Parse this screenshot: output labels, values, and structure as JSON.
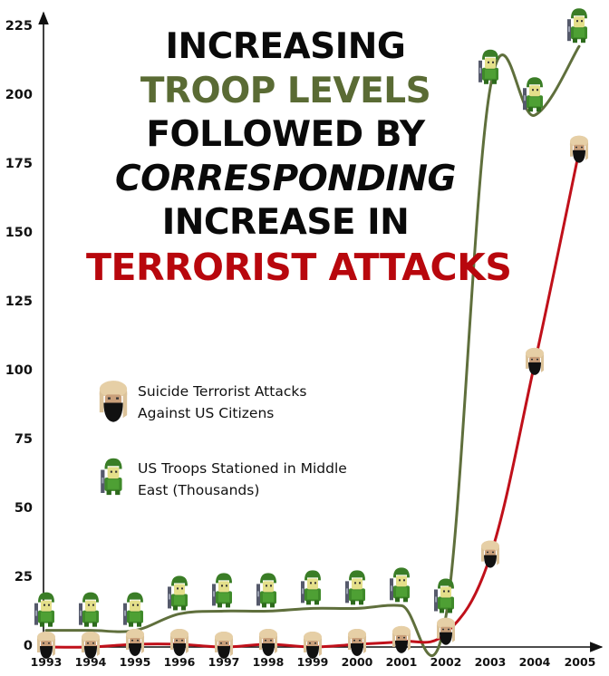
{
  "title": {
    "line1": "INCREASING",
    "line2": "TROOP LEVELS",
    "line3": "FOLLOWED BY",
    "line4": "CORRESPONDING",
    "line5": "INCREASE IN",
    "line6": "TERRORIST ATTACKS"
  },
  "legend": {
    "attacks": "Suicide Terrorist Attacks",
    "attacks_line2": "Against US Citizens",
    "troops": "US Troops Stationed in Middle",
    "troops_line2": "East (Thousands)"
  },
  "colors": {
    "troops_line": "#5f6f3c",
    "attacks_line": "#c0101a",
    "title_green": "#5a6b34",
    "title_red": "#b8070d",
    "axis": "#111111"
  },
  "axis": {
    "y_ticks": [
      "225",
      "200",
      "175",
      "150",
      "125",
      "100",
      "75",
      "50",
      "25",
      "0"
    ],
    "x_ticks": [
      "1993",
      "1994",
      "1995",
      "1996",
      "1997",
      "1998",
      "1999",
      "2000",
      "2001",
      "2002",
      "2003",
      "2004",
      "2005"
    ]
  },
  "chart_data": {
    "type": "line",
    "title": "INCREASING TROOP LEVELS FOLLOWED BY CORRESPONDING INCREASE IN TERRORIST ATTACKS",
    "xlabel": "",
    "ylabel": "",
    "x": [
      1993,
      1994,
      1995,
      1996,
      1997,
      1998,
      1999,
      2000,
      2001,
      2002,
      2003,
      2004,
      2005
    ],
    "ylim": [
      0,
      225
    ],
    "y_ticks": [
      0,
      25,
      50,
      75,
      100,
      125,
      150,
      175,
      200,
      225
    ],
    "grid": false,
    "legend_position": "center-left (inside plot)",
    "series": [
      {
        "name": "US Troops Stationed in Middle East (Thousands)",
        "marker": "soldier",
        "color": "#5f6f3c",
        "values": [
          8,
          8,
          8,
          14,
          15,
          15,
          16,
          16,
          17,
          13,
          205,
          195,
          220
        ]
      },
      {
        "name": "Suicide Terrorist Attacks Against US Citizens",
        "marker": "bearded-face",
        "color": "#c0101a",
        "values": [
          0,
          0,
          1,
          1,
          0,
          1,
          0,
          1,
          2,
          5,
          33,
          103,
          180
        ]
      }
    ]
  }
}
